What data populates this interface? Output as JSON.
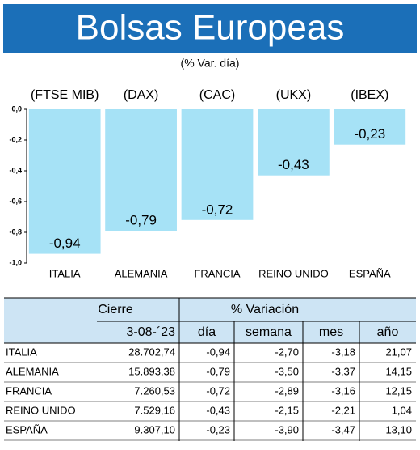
{
  "chart_data": {
    "type": "bar",
    "title": "Bolsas Europeas",
    "subtitle": "(% Var. día)",
    "categories": [
      "ITALIA",
      "ALEMANIA",
      "FRANCIA",
      "REINO UNIDO",
      "ESPAÑA"
    ],
    "index_labels": [
      "(FTSE MIB)",
      "(DAX)",
      "(CAC)",
      "(UKX)",
      "(IBEX)"
    ],
    "values": [
      -0.94,
      -0.79,
      -0.72,
      -0.43,
      -0.23
    ],
    "value_labels": [
      "-0,94",
      "-0,79",
      "-0,72",
      "-0,43",
      "-0,23"
    ],
    "color": "#a6e2f6",
    "ylim": [
      -1,
      0
    ],
    "yticks": [
      {
        "value": 0,
        "label": "0,0"
      },
      {
        "value": -0.2,
        "label": "-0,2"
      },
      {
        "value": -0.4,
        "label": "-0,4"
      },
      {
        "value": -0.6,
        "label": "-0,6"
      },
      {
        "value": -0.8,
        "label": "-0,8"
      },
      {
        "value": -1,
        "label": "-1,0"
      }
    ],
    "grid": false
  },
  "table": {
    "header": [
      "Cierre",
      "% Variación"
    ],
    "subheader": [
      "3-08-´23",
      "día",
      "semana",
      "mes",
      "año"
    ],
    "rows": [
      [
        "ITALIA",
        "28.702,74",
        "-0,94",
        "-2,70",
        "-3,18",
        "21,07"
      ],
      [
        "ALEMANIA",
        "15.893,38",
        "-0,79",
        "-3,50",
        "-3,37",
        "14,15"
      ],
      [
        "FRANCIA",
        "7.260,53",
        "-0,72",
        "-2,89",
        "-3,16",
        "12,15"
      ],
      [
        "REINO UNIDO",
        "7.529,16",
        "-0,43",
        "-2,15",
        "-2,21",
        "1,04"
      ],
      [
        "ESPAÑA",
        "9.307,10",
        "-0,23",
        "-3,90",
        "-3,47",
        "13,10"
      ]
    ]
  }
}
